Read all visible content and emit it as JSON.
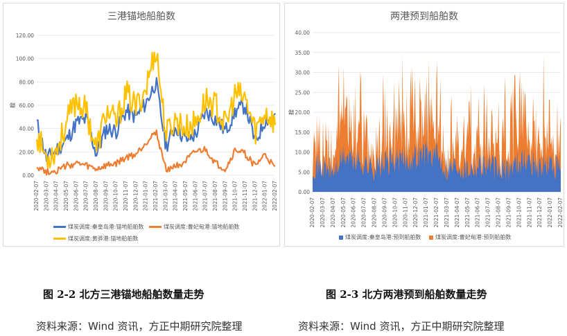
{
  "charts": [
    {
      "id": "left",
      "title": "三港锚地船舶数",
      "caption": "图 2-2 北方三港锚地船舶数量走势",
      "source": "资料来源：Wind 资讯，方正中期研究院整理",
      "ylabel": "艘",
      "legend": [
        {
          "name": "煤炭调度:秦皇岛港:锚地船舶数",
          "color": "#4472C4"
        },
        {
          "name": "煤炭调度:曹妃甸港:锚地船舶数",
          "color": "#ED7D31"
        },
        {
          "name": "煤炭调度:黄骅港:锚地船舶数",
          "color": "#FFC000"
        }
      ],
      "yticks": [
        "120.00",
        "100.00",
        "80.00",
        "60.00",
        "40.00",
        "20.00",
        "0.00"
      ],
      "xticks": [
        "2020-02-07",
        "2020-03-07",
        "2020-04-07",
        "2020-05-07",
        "2020-06-07",
        "2020-07-07",
        "2020-08-07",
        "2020-09-07",
        "2020-10-07",
        "2020-11-07",
        "2020-12-07",
        "2021-01-07",
        "2021-02-07",
        "2021-03-07",
        "2021-04-07",
        "2021-05-07",
        "2021-06-07",
        "2021-07-07",
        "2021-08-07",
        "2021-09-07",
        "2021-10-07",
        "2021-11-07",
        "2021-12-07",
        "2022-01-07",
        "2022-02-07"
      ]
    },
    {
      "id": "right",
      "title": "两港预到船舶数",
      "caption": "图 2-3 北方两港预到船舶数量走势",
      "source": "资料来源：Wind 资讯，方正中期研究院整理",
      "ylabel": "艘",
      "legend": [
        {
          "name": "煤炭调度:秦皇岛港:预到船舶数",
          "color": "#4472C4"
        },
        {
          "name": "煤炭调度:曹妃甸港:预到船舶数",
          "color": "#ED7D31"
        }
      ],
      "yticks": [
        "40.00",
        "35.00",
        "30.00",
        "25.00",
        "20.00",
        "15.00",
        "10.00",
        "5.00",
        "0.00"
      ],
      "xticks": [
        "2020-02-07",
        "2020-03-07",
        "2020-04-07",
        "2020-05-07",
        "2020-06-07",
        "2020-07-07",
        "2020-08-07",
        "2020-09-07",
        "2020-10-07",
        "2020-11-07",
        "2020-12-07",
        "2021-01-07",
        "2021-02-07",
        "2021-03-07",
        "2021-04-07",
        "2021-05-07",
        "2021-06-07",
        "2021-07-07",
        "2021-08-07",
        "2021-09-07",
        "2021-10-07",
        "2021-11-07",
        "2021-12-07",
        "2022-01-07",
        "2022-02-07"
      ]
    }
  ],
  "chart_data": [
    {
      "type": "line",
      "title": "三港锚地船舶数",
      "ylabel": "艘",
      "ylim": [
        0,
        120
      ],
      "x_range": [
        "2020-02-07",
        "2022-02-07"
      ],
      "series": [
        {
          "name": "煤炭调度:秦皇岛港:锚地船舶数",
          "x": [
            "2020-02-07",
            "2020-03-07",
            "2020-04-07",
            "2020-05-07",
            "2020-06-07",
            "2020-07-07",
            "2020-08-07",
            "2020-09-07",
            "2020-10-07",
            "2020-11-07",
            "2020-12-07",
            "2021-01-07",
            "2021-02-07",
            "2021-03-07",
            "2021-04-07",
            "2021-05-07",
            "2021-06-07",
            "2021-07-07",
            "2021-08-07",
            "2021-09-07",
            "2021-10-07",
            "2021-11-07",
            "2021-12-07",
            "2022-01-07",
            "2022-02-07"
          ],
          "values": [
            45,
            14,
            22,
            30,
            45,
            48,
            18,
            40,
            38,
            55,
            50,
            62,
            80,
            25,
            42,
            30,
            35,
            55,
            48,
            38,
            55,
            60,
            28,
            48,
            50
          ]
        },
        {
          "name": "煤炭调度:曹妃甸港:锚地船舶数",
          "x": [
            "2020-02-07",
            "2020-03-07",
            "2020-04-07",
            "2020-05-07",
            "2020-06-07",
            "2020-07-07",
            "2020-08-07",
            "2020-09-07",
            "2020-10-07",
            "2020-11-07",
            "2020-12-07",
            "2021-01-07",
            "2021-02-07",
            "2021-03-07",
            "2021-04-07",
            "2021-05-07",
            "2021-06-07",
            "2021-07-07",
            "2021-08-07",
            "2021-09-07",
            "2021-10-07",
            "2021-11-07",
            "2021-12-07",
            "2022-01-07",
            "2022-02-07"
          ],
          "values": [
            8,
            3,
            4,
            8,
            10,
            8,
            5,
            8,
            10,
            15,
            18,
            28,
            38,
            5,
            8,
            12,
            20,
            22,
            10,
            5,
            22,
            18,
            8,
            18,
            5
          ]
        },
        {
          "name": "煤炭调度:黄骅港:锚地船舶数",
          "x": [
            "2020-02-07",
            "2020-03-07",
            "2020-04-07",
            "2020-05-07",
            "2020-06-07",
            "2020-07-07",
            "2020-08-07",
            "2020-09-07",
            "2020-10-07",
            "2020-11-07",
            "2020-12-07",
            "2021-01-07",
            "2021-02-07",
            "2021-03-07",
            "2021-04-07",
            "2021-05-07",
            "2021-06-07",
            "2021-07-07",
            "2021-08-07",
            "2021-09-07",
            "2021-10-07",
            "2021-11-07",
            "2021-12-07",
            "2022-01-07",
            "2022-02-07"
          ],
          "values": [
            35,
            15,
            22,
            45,
            65,
            55,
            22,
            55,
            45,
            70,
            58,
            75,
            110,
            35,
            48,
            40,
            45,
            65,
            60,
            42,
            70,
            65,
            38,
            55,
            45
          ]
        }
      ]
    },
    {
      "type": "area",
      "stacked": true,
      "title": "两港预到船舶数",
      "ylabel": "艘",
      "ylim": [
        0,
        40
      ],
      "x_range": [
        "2020-02-07",
        "2022-02-07"
      ],
      "series": [
        {
          "name": "煤炭调度:秦皇岛港:预到船舶数",
          "x": [
            "2020-02-07",
            "2020-03-07",
            "2020-04-07",
            "2020-05-07",
            "2020-06-07",
            "2020-07-07",
            "2020-08-07",
            "2020-09-07",
            "2020-10-07",
            "2020-11-07",
            "2020-12-07",
            "2021-01-07",
            "2021-02-07",
            "2021-03-07",
            "2021-04-07",
            "2021-05-07",
            "2021-06-07",
            "2021-07-07",
            "2021-08-07",
            "2021-09-07",
            "2021-10-07",
            "2021-11-07",
            "2021-12-07",
            "2022-01-07",
            "2022-02-07"
          ],
          "values": [
            7,
            6,
            5,
            9,
            8,
            7,
            6,
            7,
            8,
            8,
            9,
            10,
            9,
            6,
            7,
            6,
            7,
            7,
            5,
            6,
            8,
            8,
            6,
            7,
            5
          ]
        },
        {
          "name": "煤炭调度:曹妃甸港:预到船舶数",
          "x": [
            "2020-02-07",
            "2020-03-07",
            "2020-04-07",
            "2020-05-07",
            "2020-06-07",
            "2020-07-07",
            "2020-08-07",
            "2020-09-07",
            "2020-10-07",
            "2020-11-07",
            "2020-12-07",
            "2021-01-07",
            "2021-02-07",
            "2021-03-07",
            "2021-04-07",
            "2021-05-07",
            "2021-06-07",
            "2021-07-07",
            "2021-08-07",
            "2021-09-07",
            "2021-10-07",
            "2021-11-07",
            "2021-12-07",
            "2022-01-07",
            "2022-02-07"
          ],
          "values": [
            5,
            4,
            6,
            14,
            9,
            7,
            6,
            8,
            9,
            10,
            10,
            10,
            8,
            6,
            6,
            5,
            7,
            8,
            6,
            6,
            11,
            9,
            7,
            8,
            6
          ]
        }
      ]
    }
  ],
  "colors": {
    "blue": "#4472C4",
    "orange": "#ED7D31",
    "yellow": "#FFC000",
    "grid": "#E0E0E0"
  }
}
